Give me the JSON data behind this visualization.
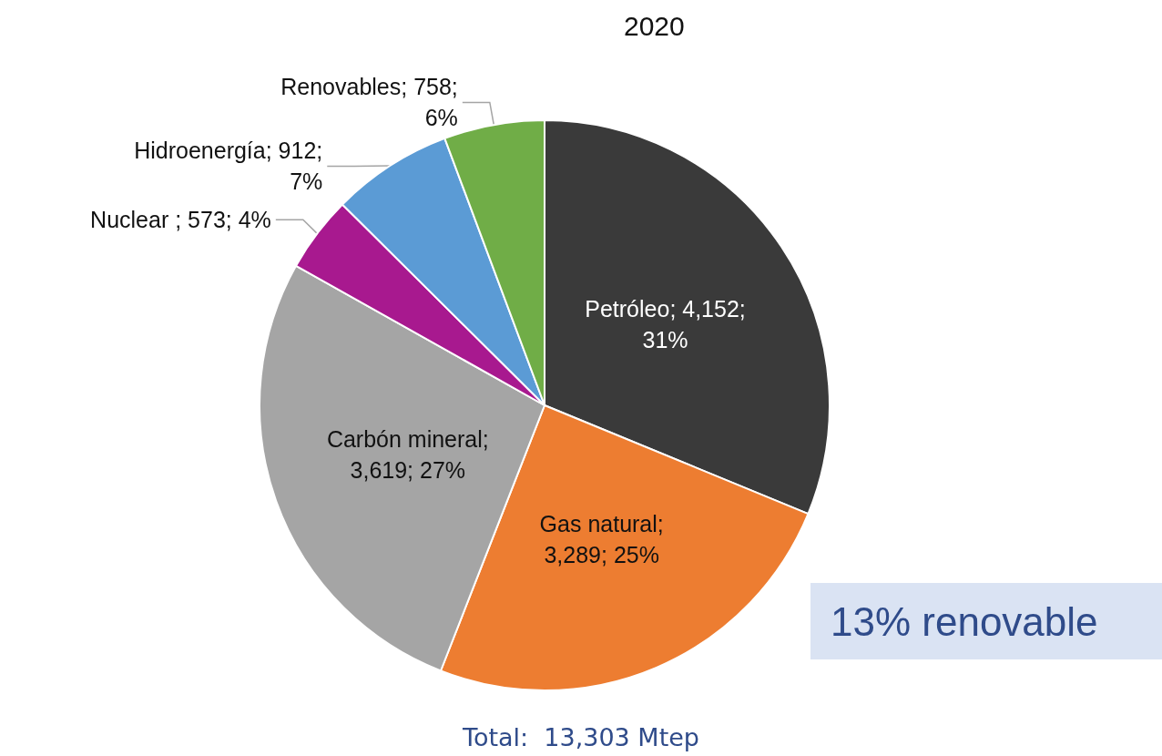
{
  "chart_data": {
    "type": "pie",
    "title": "2020",
    "categories": [
      "Petróleo",
      "Gas natural",
      "Carbón mineral",
      "Nuclear",
      "Hidroenergía",
      "Renovables"
    ],
    "values": [
      4152,
      3289,
      3619,
      573,
      912,
      758
    ],
    "colors": [
      "#3a3a3a",
      "#ed7d31",
      "#a5a5a5",
      "#a8198f",
      "#5b9bd5",
      "#70ad47"
    ],
    "value_labels": [
      "; 4,152; 31%",
      "; 3,289; 25%",
      "; 3,619; 27%",
      " ; 573; 4%",
      "; 912; 7%",
      "; 758; 6%"
    ],
    "annotations": [
      "13% renovable",
      "Total:  13,303 Mtep"
    ]
  }
}
